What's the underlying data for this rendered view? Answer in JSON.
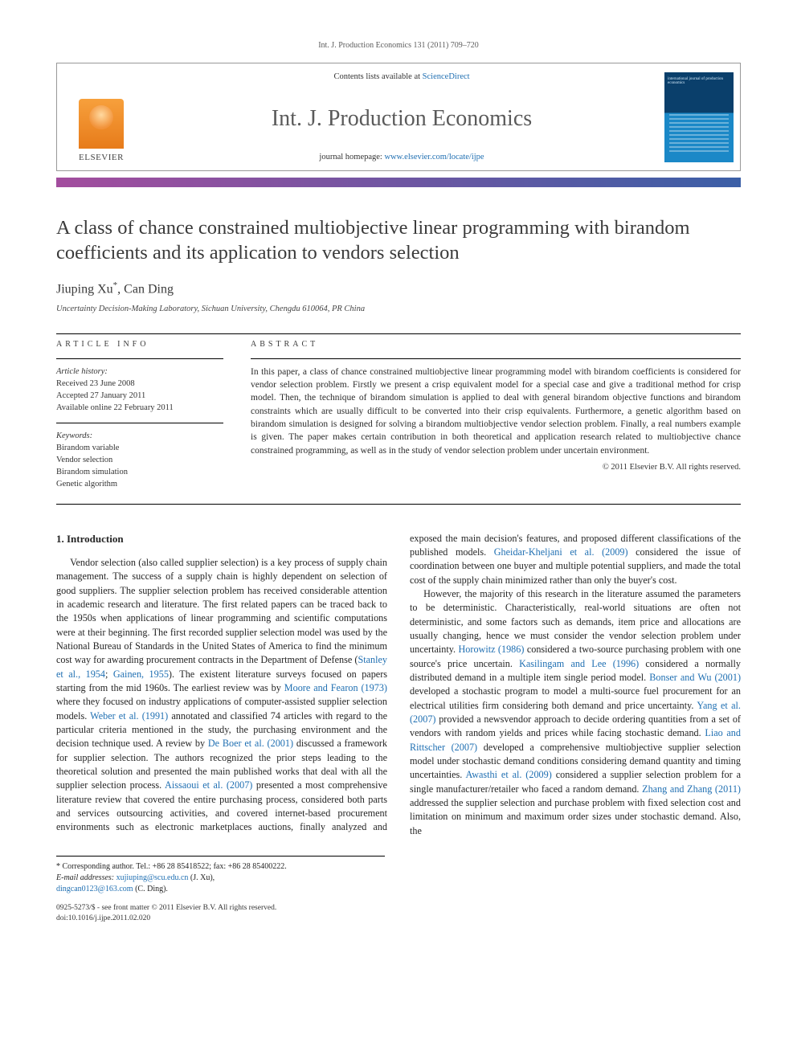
{
  "running_head": "Int. J. Production Economics 131 (2011) 709–720",
  "masthead": {
    "contents_prefix": "Contents lists available at ",
    "contents_link": "ScienceDirect",
    "journal_title": "Int. J. Production Economics",
    "homepage_prefix": "journal homepage: ",
    "homepage_link": "www.elsevier.com/locate/ijpe",
    "publisher_word": "ELSEVIER",
    "cover_caption": "international journal of production economics"
  },
  "article": {
    "title": "A class of chance constrained multiobjective linear programming with birandom coefficients and its application to vendors selection",
    "authors_html": "Jiuping Xu",
    "corr_mark": "*",
    "authors_rest": ", Can Ding",
    "affiliation": "Uncertainty Decision-Making Laboratory, Sichuan University, Chengdu 610064, PR China"
  },
  "info": {
    "head": "ARTICLE INFO",
    "history_label": "Article history:",
    "received": "Received 23 June 2008",
    "accepted": "Accepted 27 January 2011",
    "online": "Available online 22 February 2011",
    "keywords_label": "Keywords:",
    "kw1": "Birandom variable",
    "kw2": "Vendor selection",
    "kw3": "Birandom simulation",
    "kw4": "Genetic algorithm"
  },
  "abstract": {
    "head": "ABSTRACT",
    "text": "In this paper, a class of chance constrained multiobjective linear programming model with birandom coefficients is considered for vendor selection problem. Firstly we present a crisp equivalent model for a special case and give a traditional method for crisp model. Then, the technique of birandom simulation is applied to deal with general birandom objective functions and birandom constraints which are usually difficult to be converted into their crisp equivalents. Furthermore, a genetic algorithm based on birandom simulation is designed for solving a birandom multiobjective vendor selection problem. Finally, a real numbers example is given. The paper makes certain contribution in both theoretical and application research related to multiobjective chance constrained programming, as well as in the study of vendor selection problem under uncertain environment.",
    "copyright": "© 2011 Elsevier B.V. All rights reserved."
  },
  "body": {
    "section_num": "1.",
    "section_title": "Introduction",
    "col_text": "Vendor selection (also called supplier selection) is a key process of supply chain management. The success of a supply chain is highly dependent on selection of good suppliers. The supplier selection problem has received considerable attention in academic research and literature. The first related papers can be traced back to the 1950s when applications of linear programming and scientific computations were at their beginning. The first recorded supplier selection model was used by the National Bureau of Standards in the United States of America to find the minimum cost way for awarding procurement contracts in the Department of Defense (",
    "ref1": "Stanley et al., 1954",
    "sep1": "; ",
    "ref2": "Gainen, 1955",
    "after2": "). The existent literature surveys focused on papers starting from the mid 1960s. The earliest review was by ",
    "ref3": "Moore and Fearon (1973)",
    "after3": " where they focused on industry applications of computer-assisted supplier selection models. ",
    "ref4": "Weber et al. (1991)",
    "after4": " annotated and classified 74 articles with regard to the particular criteria mentioned in the study, the purchasing environment and the decision technique used. A review by ",
    "ref5": "De Boer et al. (2001)",
    "after5": " discussed a framework for supplier selection. The authors recognized the prior steps leading to the theoretical solution and presented the main published works that deal with all the supplier selection process. ",
    "ref6": "Aissaoui et al. (2007)",
    "after6": " presented a most comprehensive literature review that covered the entire purchasing process, considered both parts and services outsourcing activities, and covered internet-based procurement environments such as electronic marketplaces auctions, finally analyzed and exposed the main decision's features, and proposed different classifications of the published models. ",
    "ref7": "Gheidar-Kheljani et al. (2009)",
    "after7": " considered the issue of coordination between one buyer and multiple potential suppliers, and made the total cost of the supply chain minimized rather than only the buyer's cost.",
    "p2_a": "However, the majority of this research in the literature assumed the parameters to be deterministic. Characteristically, real-world situations are often not deterministic, and some factors such as demands, item price and allocations are usually changing, hence we must consider the vendor selection problem under uncertainty. ",
    "ref8": "Horowitz (1986)",
    "p2_b": " considered a two-source purchasing problem with one source's price uncertain. ",
    "ref9": "Kasilingam and Lee (1996)",
    "p2_c": " considered a normally distributed demand in a multiple item single period model. ",
    "ref10": "Bonser and Wu (2001)",
    "p2_d": " developed a stochastic program to model a multi-source fuel procurement for an electrical utilities firm considering both demand and price uncertainty. ",
    "ref11": "Yang et al. (2007)",
    "p2_e": " provided a newsvendor approach to decide ordering quantities from a set of vendors with random yields and prices while facing stochastic demand. ",
    "ref12": "Liao and Rittscher (2007)",
    "p2_f": " developed a comprehensive multiobjective supplier selection model under stochastic demand conditions considering demand quantity and timing uncertainties. ",
    "ref13": "Awasthi et al. (2009)",
    "p2_g": " considered a supplier selection problem for a single manufacturer/retailer who faced a random demand. ",
    "ref14": "Zhang and Zhang (2011)",
    "p2_h": " addressed the supplier selection and purchase problem with fixed selection cost and limitation on minimum and maximum order sizes under stochastic demand. Also, the"
  },
  "footer": {
    "corr_line": "* Corresponding author. Tel.: +86 28 85418522; fax: +86 28 85400222.",
    "email_label": "E-mail addresses:",
    "email1": "xujiuping@scu.edu.cn",
    "email1_who": " (J. Xu), ",
    "email2": "dingcan0123@163.com",
    "email2_who": " (C. Ding).",
    "issn_line": "0925-5273/$ - see front matter © 2011 Elsevier B.V. All rights reserved.",
    "doi_line": "doi:10.1016/j.ijpe.2011.02.020"
  },
  "colors": {
    "link": "#1f6fb2",
    "bar_left": "#a34d9e",
    "bar_right": "#3b5fa6"
  }
}
